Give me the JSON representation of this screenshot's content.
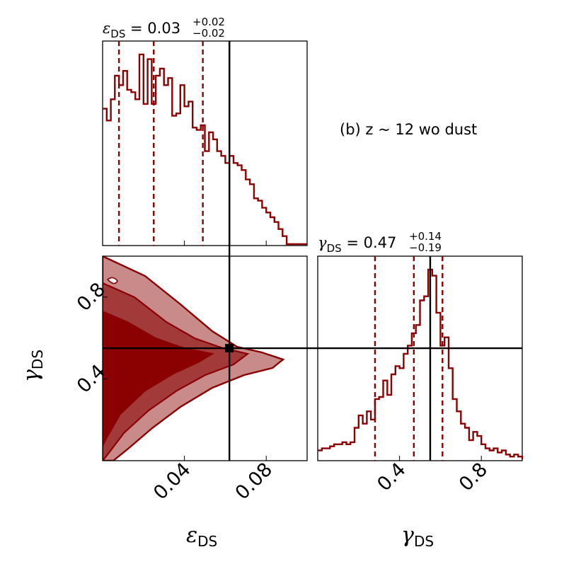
{
  "chart_data": {
    "type": "corner",
    "annotation": "(b) z ~  12 wo dust",
    "colors": {
      "contour": "#8b0000",
      "contour_light": "#c98a8a",
      "truth": "#000000"
    },
    "parameters": [
      {
        "symbol": "ε",
        "subscript": "DS",
        "range": [
          0.0,
          0.1
        ],
        "ticks": [
          0.04,
          0.08
        ],
        "tick_labels": [
          "0.04",
          "0.08"
        ],
        "truth": 0.062,
        "quantiles": [
          0.008,
          0.025,
          0.049
        ],
        "title_prefix": "ε",
        "title_sub": "DS",
        "title_value": " = 0.03",
        "title_plus": "+0.02",
        "title_minus": "−0.02",
        "hist_edges": [
          0.0,
          0.002,
          0.004,
          0.006,
          0.008,
          0.01,
          0.012,
          0.014,
          0.016,
          0.018,
          0.02,
          0.022,
          0.024,
          0.026,
          0.028,
          0.03,
          0.032,
          0.034,
          0.036,
          0.038,
          0.04,
          0.042,
          0.044,
          0.046,
          0.048,
          0.05,
          0.052,
          0.054,
          0.056,
          0.058,
          0.06,
          0.062,
          0.064,
          0.066,
          0.068,
          0.07,
          0.072,
          0.074,
          0.076,
          0.078,
          0.08,
          0.082,
          0.084,
          0.086,
          0.088,
          0.09
        ],
        "hist_counts": [
          58,
          53,
          62,
          72,
          68,
          74,
          66,
          65,
          62,
          81,
          60,
          79,
          60,
          72,
          75,
          68,
          71,
          55,
          56,
          68,
          59,
          61,
          50,
          49,
          51,
          40,
          48,
          45,
          40,
          38,
          35,
          38,
          35,
          34,
          32,
          28,
          26,
          20,
          19,
          16,
          14,
          12,
          10,
          7,
          4
        ]
      },
      {
        "symbol": "γ",
        "subscript": "DS",
        "range": [
          0.0,
          1.0
        ],
        "ticks": [
          0.4,
          0.8
        ],
        "tick_labels": [
          "0.4",
          "0.8"
        ],
        "truth": 0.55,
        "quantiles": [
          0.28,
          0.47,
          0.61
        ],
        "title_prefix": "γ",
        "title_sub": "DS",
        "title_value": " = 0.47",
        "title_plus": "+0.14",
        "title_minus": "−0.19",
        "hist_edges": [
          0.0,
          0.02,
          0.04,
          0.06,
          0.08,
          0.1,
          0.12,
          0.14,
          0.16,
          0.18,
          0.2,
          0.22,
          0.24,
          0.26,
          0.28,
          0.3,
          0.32,
          0.34,
          0.36,
          0.38,
          0.4,
          0.42,
          0.44,
          0.46,
          0.48,
          0.5,
          0.52,
          0.54,
          0.56,
          0.58,
          0.6,
          0.62,
          0.64,
          0.66,
          0.68,
          0.7,
          0.72,
          0.74,
          0.76,
          0.78,
          0.8,
          0.82,
          0.84,
          0.86,
          0.88,
          0.9,
          0.92,
          0.94,
          0.96,
          0.98,
          1.0
        ],
        "hist_counts": [
          5,
          6,
          6,
          7,
          8,
          8,
          9,
          8,
          9,
          16,
          22,
          18,
          24,
          20,
          30,
          31,
          39,
          32,
          42,
          46,
          45,
          52,
          56,
          62,
          66,
          78,
          80,
          93,
          90,
          72,
          56,
          60,
          45,
          30,
          24,
          18,
          16,
          10,
          14,
          12,
          8,
          6,
          5,
          6,
          4,
          5,
          3,
          2,
          3,
          2
        ]
      }
    ],
    "contour_2d": {
      "x_param": "ε_DS",
      "y_param": "γ_DS",
      "truth_point": [
        0.062,
        0.55
      ],
      "peak_region": [
        0.0,
        0.45
      ]
    }
  }
}
